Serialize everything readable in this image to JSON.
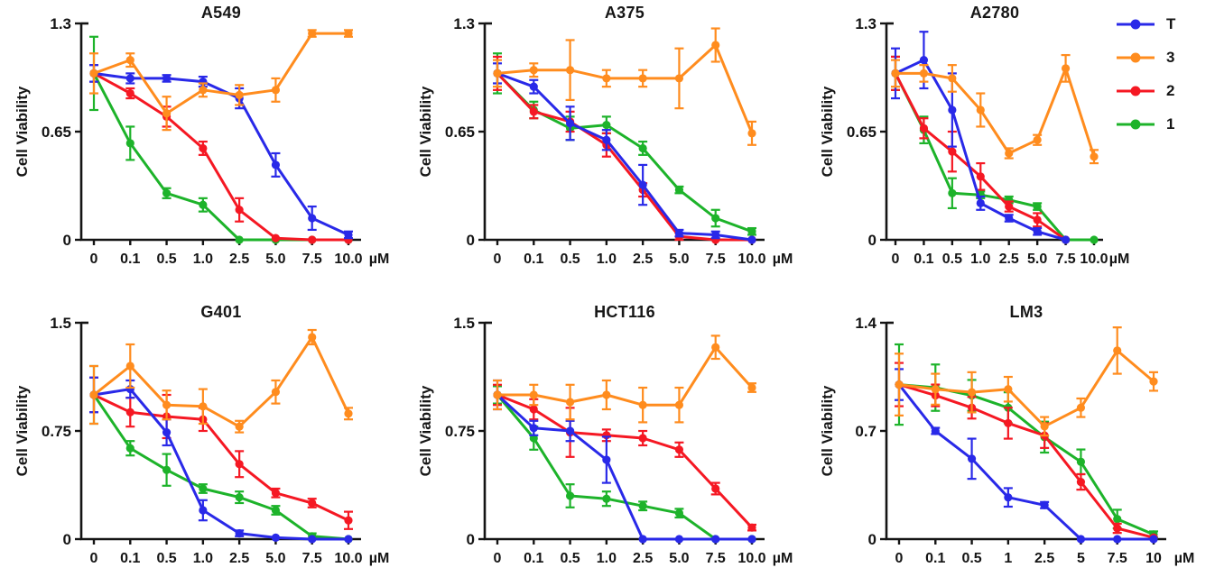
{
  "figure": {
    "ylabel": "Cell Viability",
    "xunit": "µM",
    "colors": {
      "T": "#2929e8",
      "3": "#ff8c1e",
      "2": "#f51823",
      "1": "#1db32a"
    },
    "axis_color": "#141414"
  },
  "legend": {
    "position": "top-right-of-A2780",
    "items": [
      {
        "label": "T",
        "color": "#2929e8"
      },
      {
        "label": "3",
        "color": "#ff8c1e"
      },
      {
        "label": "2",
        "color": "#f51823"
      },
      {
        "label": "1",
        "color": "#1db32a"
      }
    ]
  },
  "chart_data": [
    {
      "type": "line",
      "title": "A549",
      "ylabel": "Cell Viability",
      "xunit": "µM",
      "categories": [
        "0",
        "0.1",
        "0.5",
        "1.0",
        "2.5",
        "5.0",
        "7.5",
        "10.0"
      ],
      "ylim": [
        0,
        1.3
      ],
      "yticks": [
        0,
        0.65,
        1.3
      ],
      "ytick_labels": [
        "0",
        "0.65",
        "1.3"
      ],
      "grid": false,
      "narrow": false,
      "series": [
        {
          "name": "T",
          "color": "#2929e8",
          "values": [
            1.0,
            0.97,
            0.97,
            0.95,
            0.85,
            0.45,
            0.13,
            0.03
          ],
          "errors": [
            0.05,
            0.03,
            0.02,
            0.03,
            0.06,
            0.07,
            0.07,
            0.02
          ]
        },
        {
          "name": "3",
          "color": "#ff8c1e",
          "values": [
            1.0,
            1.08,
            0.76,
            0.9,
            0.87,
            0.9,
            1.24,
            1.24
          ],
          "errors": [
            0.12,
            0.04,
            0.1,
            0.04,
            0.06,
            0.07,
            0.02,
            0.02
          ]
        },
        {
          "name": "2",
          "color": "#f51823",
          "values": [
            1.0,
            0.88,
            0.74,
            0.55,
            0.18,
            0.01,
            0.0,
            0.0
          ],
          "errors": [
            0.05,
            0.03,
            0.06,
            0.04,
            0.07,
            0.01,
            0.01,
            0.01
          ]
        },
        {
          "name": "1",
          "color": "#1db32a",
          "values": [
            1.0,
            0.58,
            0.28,
            0.21,
            0.0,
            0.0,
            0.0,
            0.0
          ],
          "errors": [
            0.22,
            0.1,
            0.03,
            0.04,
            0.01,
            0.01,
            0.01,
            0.01
          ]
        }
      ]
    },
    {
      "type": "line",
      "title": "A375",
      "ylabel": "Cell Viability",
      "xunit": "µM",
      "categories": [
        "0",
        "0.1",
        "0.5",
        "1.0",
        "2.5",
        "5.0",
        "7.5",
        "10.0"
      ],
      "ylim": [
        0,
        1.3
      ],
      "yticks": [
        0,
        0.65,
        1.3
      ],
      "ytick_labels": [
        "0",
        "0.65",
        "1.3"
      ],
      "grid": false,
      "narrow": false,
      "series": [
        {
          "name": "T",
          "color": "#2929e8",
          "values": [
            1.0,
            0.92,
            0.7,
            0.6,
            0.33,
            0.04,
            0.03,
            0.0
          ],
          "errors": [
            0.06,
            0.04,
            0.1,
            0.06,
            0.12,
            0.02,
            0.02,
            0.01
          ]
        },
        {
          "name": "3",
          "color": "#ff8c1e",
          "values": [
            1.0,
            1.02,
            1.02,
            0.97,
            0.97,
            0.97,
            1.17,
            0.64
          ],
          "errors": [
            0.08,
            0.04,
            0.18,
            0.05,
            0.05,
            0.18,
            0.1,
            0.07
          ]
        },
        {
          "name": "2",
          "color": "#f51823",
          "values": [
            1.0,
            0.77,
            0.71,
            0.57,
            0.3,
            0.02,
            0.0,
            0.0
          ],
          "errors": [
            0.1,
            0.04,
            0.06,
            0.07,
            0.04,
            0.02,
            0.01,
            0.01
          ]
        },
        {
          "name": "1",
          "color": "#1db32a",
          "values": [
            1.0,
            0.78,
            0.67,
            0.69,
            0.55,
            0.3,
            0.13,
            0.05
          ],
          "errors": [
            0.12,
            0.05,
            0.07,
            0.05,
            0.04,
            0.02,
            0.05,
            0.02
          ]
        }
      ]
    },
    {
      "type": "line",
      "title": "A2780",
      "ylabel": "Cell Viability",
      "xunit": "µM",
      "categories": [
        "0",
        "0.1",
        "0.5",
        "1.0",
        "2.5",
        "5.0",
        "7.5",
        "10.0"
      ],
      "ylim": [
        0,
        1.3
      ],
      "yticks": [
        0,
        0.65,
        1.3
      ],
      "ytick_labels": [
        "0",
        "0.65",
        "1.3"
      ],
      "grid": false,
      "narrow": true,
      "legend_here": true,
      "series": [
        {
          "name": "T",
          "color": "#2929e8",
          "values": [
            1.0,
            1.08,
            0.78,
            0.22,
            0.13,
            0.05,
            0.0,
            null
          ],
          "errors": [
            0.15,
            0.17,
            0.22,
            0.04,
            0.02,
            0.02,
            0.01,
            null
          ]
        },
        {
          "name": "3",
          "color": "#ff8c1e",
          "values": [
            1.0,
            1.0,
            0.97,
            0.78,
            0.52,
            0.6,
            1.03,
            0.5
          ],
          "errors": [
            0.08,
            0.05,
            0.08,
            0.1,
            0.03,
            0.03,
            0.08,
            0.04
          ]
        },
        {
          "name": "2",
          "color": "#f51823",
          "values": [
            1.0,
            0.67,
            0.53,
            0.38,
            0.2,
            0.12,
            0.0,
            null
          ],
          "errors": [
            0.1,
            0.06,
            0.12,
            0.08,
            0.03,
            0.04,
            0.01,
            null
          ]
        },
        {
          "name": "1",
          "color": "#1db32a",
          "values": [
            1.0,
            0.66,
            0.28,
            0.27,
            0.24,
            0.2,
            0.0,
            0.0
          ],
          "errors": [
            0.1,
            0.08,
            0.09,
            0.02,
            0.02,
            0.02,
            0.01,
            0.01
          ]
        }
      ]
    },
    {
      "type": "line",
      "title": "G401",
      "ylabel": "Cell Viability",
      "xunit": "µM",
      "categories": [
        "0",
        "0.1",
        "0.5",
        "1.0",
        "2.5",
        "5.0",
        "7.5",
        "10.0"
      ],
      "ylim": [
        0,
        1.5
      ],
      "yticks": [
        0,
        0.75,
        1.5
      ],
      "ytick_labels": [
        "0",
        "0.75",
        "1.5"
      ],
      "grid": false,
      "narrow": false,
      "series": [
        {
          "name": "T",
          "color": "#2929e8",
          "values": [
            1.0,
            1.04,
            0.74,
            0.2,
            0.04,
            0.01,
            0.0,
            0.0
          ],
          "errors": [
            0.12,
            0.06,
            0.09,
            0.07,
            0.02,
            0.01,
            0.01,
            0.01
          ]
        },
        {
          "name": "3",
          "color": "#ff8c1e",
          "values": [
            1.0,
            1.2,
            0.93,
            0.92,
            0.78,
            1.02,
            1.4,
            0.87
          ],
          "errors": [
            0.2,
            0.15,
            0.1,
            0.12,
            0.04,
            0.08,
            0.05,
            0.04
          ]
        },
        {
          "name": "2",
          "color": "#f51823",
          "values": [
            1.0,
            0.88,
            0.85,
            0.83,
            0.52,
            0.32,
            0.25,
            0.13
          ],
          "errors": [
            0.12,
            0.1,
            0.15,
            0.08,
            0.09,
            0.03,
            0.03,
            0.06
          ]
        },
        {
          "name": "1",
          "color": "#1db32a",
          "values": [
            1.0,
            0.63,
            0.48,
            0.35,
            0.29,
            0.2,
            0.02,
            0.0
          ],
          "errors": [
            0.2,
            0.05,
            0.11,
            0.03,
            0.04,
            0.03,
            0.02,
            0.01
          ]
        }
      ]
    },
    {
      "type": "line",
      "title": "HCT116",
      "ylabel": "Cell Viability",
      "xunit": "µM",
      "categories": [
        "0",
        "0.1",
        "0.5",
        "1.0",
        "2.5",
        "5.0",
        "7.5",
        "10.0"
      ],
      "ylim": [
        0,
        1.5
      ],
      "yticks": [
        0,
        0.75,
        1.5
      ],
      "ytick_labels": [
        "0",
        "0.75",
        "1.5"
      ],
      "grid": false,
      "narrow": false,
      "series": [
        {
          "name": "T",
          "color": "#2929e8",
          "values": [
            1.0,
            0.77,
            0.75,
            0.55,
            0.0,
            0.0,
            0.0,
            0.0
          ],
          "errors": [
            0.1,
            0.05,
            0.07,
            0.16,
            0.01,
            0.01,
            0.01,
            0.01
          ]
        },
        {
          "name": "3",
          "color": "#ff8c1e",
          "values": [
            1.0,
            1.0,
            0.95,
            1.0,
            0.93,
            0.93,
            1.33,
            1.05
          ],
          "errors": [
            0.1,
            0.07,
            0.12,
            0.1,
            0.12,
            0.12,
            0.08,
            0.03
          ]
        },
        {
          "name": "2",
          "color": "#f51823",
          "values": [
            1.0,
            0.9,
            0.74,
            0.72,
            0.7,
            0.62,
            0.35,
            0.08
          ],
          "errors": [
            0.07,
            0.07,
            0.17,
            0.04,
            0.05,
            0.05,
            0.04,
            0.02
          ]
        },
        {
          "name": "1",
          "color": "#1db32a",
          "values": [
            1.0,
            0.7,
            0.3,
            0.28,
            0.23,
            0.18,
            0.0,
            0.0
          ],
          "errors": [
            0.06,
            0.08,
            0.08,
            0.05,
            0.03,
            0.03,
            0.01,
            0.01
          ]
        }
      ]
    },
    {
      "type": "line",
      "title": "LM3",
      "ylabel": "Cell Viability",
      "xunit": "µM",
      "categories": [
        "0",
        "0.1",
        "0.5",
        "1",
        "2.5",
        "5",
        "7.5",
        "10"
      ],
      "ylim": [
        0,
        1.4
      ],
      "yticks": [
        0,
        0.7,
        1.4
      ],
      "ytick_labels": [
        "0",
        "0.7",
        "1.4"
      ],
      "grid": false,
      "narrow": false,
      "series": [
        {
          "name": "T",
          "color": "#2929e8",
          "values": [
            1.0,
            0.7,
            0.52,
            0.27,
            0.22,
            0.0,
            0.0,
            0.0
          ],
          "errors": [
            0.1,
            0.02,
            0.13,
            0.06,
            0.02,
            0.01,
            0.01,
            0.01
          ]
        },
        {
          "name": "3",
          "color": "#ff8c1e",
          "values": [
            1.0,
            0.97,
            0.95,
            0.97,
            0.73,
            0.85,
            1.22,
            1.02
          ],
          "errors": [
            0.2,
            0.1,
            0.13,
            0.08,
            0.06,
            0.06,
            0.15,
            0.06
          ]
        },
        {
          "name": "2",
          "color": "#f51823",
          "values": [
            1.0,
            0.93,
            0.85,
            0.75,
            0.67,
            0.37,
            0.07,
            0.01
          ],
          "errors": [
            0.14,
            0.07,
            0.07,
            0.1,
            0.08,
            0.05,
            0.03,
            0.01
          ]
        },
        {
          "name": "1",
          "color": "#1db32a",
          "values": [
            1.0,
            0.98,
            0.93,
            0.85,
            0.66,
            0.5,
            0.13,
            0.03
          ],
          "errors": [
            0.26,
            0.15,
            0.1,
            0.1,
            0.1,
            0.08,
            0.06,
            0.02
          ]
        }
      ]
    }
  ]
}
